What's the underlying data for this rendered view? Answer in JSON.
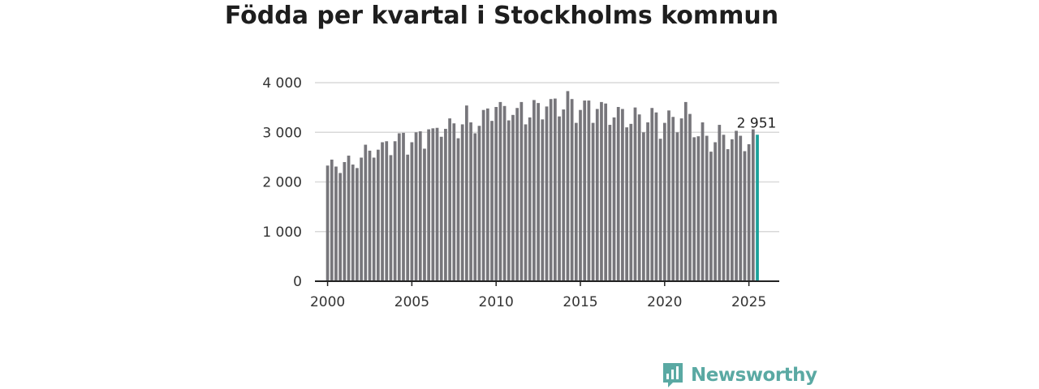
{
  "title": "Födda per kvartal i Stockholms kommun",
  "brand": {
    "name": "Newsworthy",
    "icon": "bar-chart-speech-bubble-icon"
  },
  "colors": {
    "bar": "#77767b",
    "highlight": "#1aa19a",
    "brand": "#5aa9a3"
  },
  "chart_data": {
    "type": "bar",
    "title": "Födda per kvartal i Stockholms kommun",
    "xlabel": "",
    "ylabel": "",
    "x_start": "2000 Q1",
    "frequency": "quarterly",
    "xlim": [
      1999.25,
      2026.8
    ],
    "ylim": [
      0,
      4000
    ],
    "yticks": [
      0,
      1000,
      2000,
      3000,
      4000
    ],
    "ytick_labels": [
      "0",
      "1 000",
      "2 000",
      "3 000",
      "4 000"
    ],
    "xticks": [
      2000,
      2005,
      2010,
      2015,
      2020,
      2025
    ],
    "xtick_labels": [
      "2000",
      "2005",
      "2010",
      "2015",
      "2020",
      "2025"
    ],
    "grid": true,
    "values": [
      2330,
      2450,
      2310,
      2180,
      2400,
      2530,
      2350,
      2280,
      2490,
      2750,
      2630,
      2490,
      2650,
      2800,
      2820,
      2540,
      2820,
      2980,
      2990,
      2550,
      2800,
      3000,
      3020,
      2670,
      3060,
      3080,
      3090,
      2910,
      3070,
      3280,
      3180,
      2880,
      3160,
      3540,
      3200,
      2980,
      3130,
      3450,
      3480,
      3230,
      3510,
      3610,
      3530,
      3240,
      3350,
      3490,
      3610,
      3160,
      3300,
      3650,
      3590,
      3260,
      3520,
      3670,
      3680,
      3320,
      3460,
      3830,
      3670,
      3190,
      3450,
      3640,
      3640,
      3190,
      3470,
      3610,
      3580,
      3150,
      3300,
      3510,
      3470,
      3100,
      3170,
      3500,
      3360,
      3000,
      3200,
      3490,
      3400,
      2870,
      3190,
      3440,
      3310,
      3000,
      3280,
      3610,
      3370,
      2900,
      2920,
      3200,
      2930,
      2610,
      2800,
      3150,
      2950,
      2660,
      2860,
      3030,
      2930,
      2620,
      2760,
      3060,
      2951
    ],
    "highlight": {
      "period": "2025 Q3",
      "value": 2951,
      "label": "2 951"
    }
  }
}
